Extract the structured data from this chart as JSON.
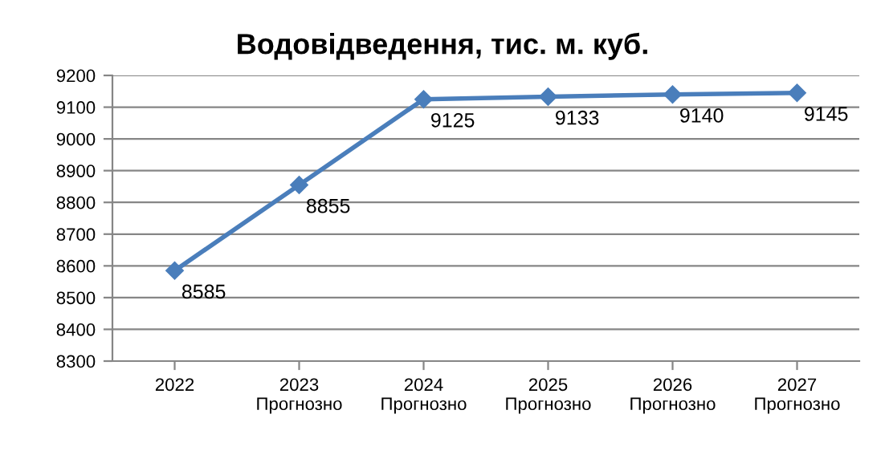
{
  "chart_data": {
    "type": "line",
    "title": "Водовідведення, тис. м. куб.",
    "categories": [
      "2022",
      "2023\nПрогнозно",
      "2024\nПрогнозно",
      "2025\nПрогнозно",
      "2026\nПрогнозно",
      "2027\nПрогнозно"
    ],
    "series": [
      {
        "color": "#4a7ebb",
        "values": [
          8585,
          8855,
          9125,
          9133,
          9140,
          9145
        ]
      }
    ],
    "ylim": [
      8300,
      9200
    ],
    "yticks": [
      8300,
      8400,
      8500,
      8600,
      8700,
      8800,
      8900,
      9000,
      9100,
      9200
    ],
    "grid": "y",
    "marker": "diamond",
    "line_style": "solid",
    "data_labels": true
  }
}
